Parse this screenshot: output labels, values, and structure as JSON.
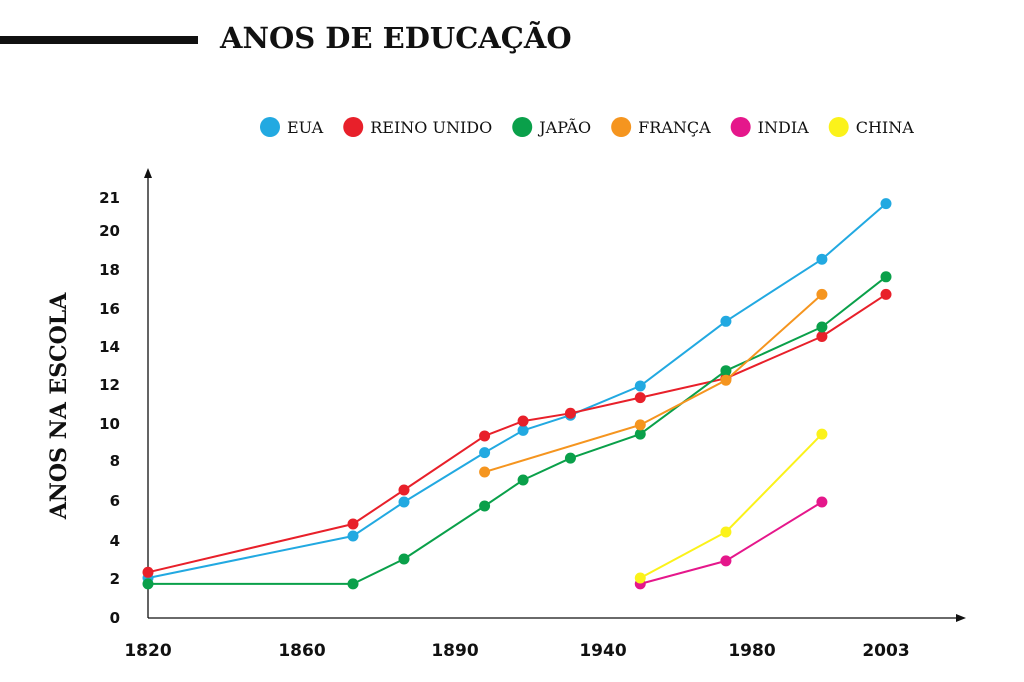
{
  "title": "ANOS DE EDUCAÇÃO",
  "chart_data": {
    "type": "line",
    "title": "ANOS DE EDUCAÇÃO",
    "xlabel": "",
    "ylabel": "ANOS NA ESCOLA",
    "x_ticks": [
      "1820",
      "1860",
      "1890",
      "1940",
      "1980",
      "2003"
    ],
    "y_ticks": [
      "0",
      "2",
      "4",
      "6",
      "8",
      "10",
      "12",
      "14",
      "16",
      "18",
      "20",
      "21"
    ],
    "xlim": [
      1820,
      2003
    ],
    "ylim": [
      0,
      21
    ],
    "legend_position": "top-right",
    "grid": false,
    "series": [
      {
        "name": "EUA",
        "color": "#22a9e1",
        "points": [
          [
            1820,
            2.0
          ],
          [
            1870,
            4.2
          ],
          [
            1880,
            5.9
          ],
          [
            1900,
            8.4
          ],
          [
            1913,
            9.6
          ],
          [
            1929,
            10.4
          ],
          [
            1950,
            11.9
          ],
          [
            1973,
            15.3
          ],
          [
            1992,
            18.5
          ],
          [
            2003,
            20.8
          ]
        ]
      },
      {
        "name": "REINO UNIDO",
        "color": "#e8202a",
        "points": [
          [
            1820,
            2.3
          ],
          [
            1870,
            4.8
          ],
          [
            1880,
            6.5
          ],
          [
            1900,
            9.3
          ],
          [
            1913,
            10.1
          ],
          [
            1929,
            10.5
          ],
          [
            1950,
            11.3
          ],
          [
            1973,
            12.3
          ],
          [
            1992,
            14.5
          ],
          [
            2003,
            16.7
          ]
        ]
      },
      {
        "name": "JAPÃO",
        "color": "#0aa04a",
        "points": [
          [
            1820,
            1.7
          ],
          [
            1870,
            1.7
          ],
          [
            1880,
            3.0
          ],
          [
            1900,
            5.7
          ],
          [
            1913,
            7.0
          ],
          [
            1929,
            8.1
          ],
          [
            1950,
            9.4
          ],
          [
            1973,
            12.7
          ],
          [
            1992,
            15.0
          ],
          [
            2003,
            17.6
          ]
        ]
      },
      {
        "name": "FRANÇA",
        "color": "#f5951f",
        "points": [
          [
            1900,
            7.4
          ],
          [
            1950,
            9.9
          ],
          [
            1973,
            12.2
          ],
          [
            1992,
            16.7
          ]
        ]
      },
      {
        "name": "INDIA",
        "color": "#e5178b",
        "points": [
          [
            1950,
            1.7
          ],
          [
            1973,
            2.9
          ],
          [
            1992,
            5.9
          ]
        ]
      },
      {
        "name": "CHINA",
        "color": "#fbf21a",
        "points": [
          [
            1950,
            2.0
          ],
          [
            1973,
            4.4
          ],
          [
            1992,
            9.4
          ]
        ]
      }
    ]
  }
}
